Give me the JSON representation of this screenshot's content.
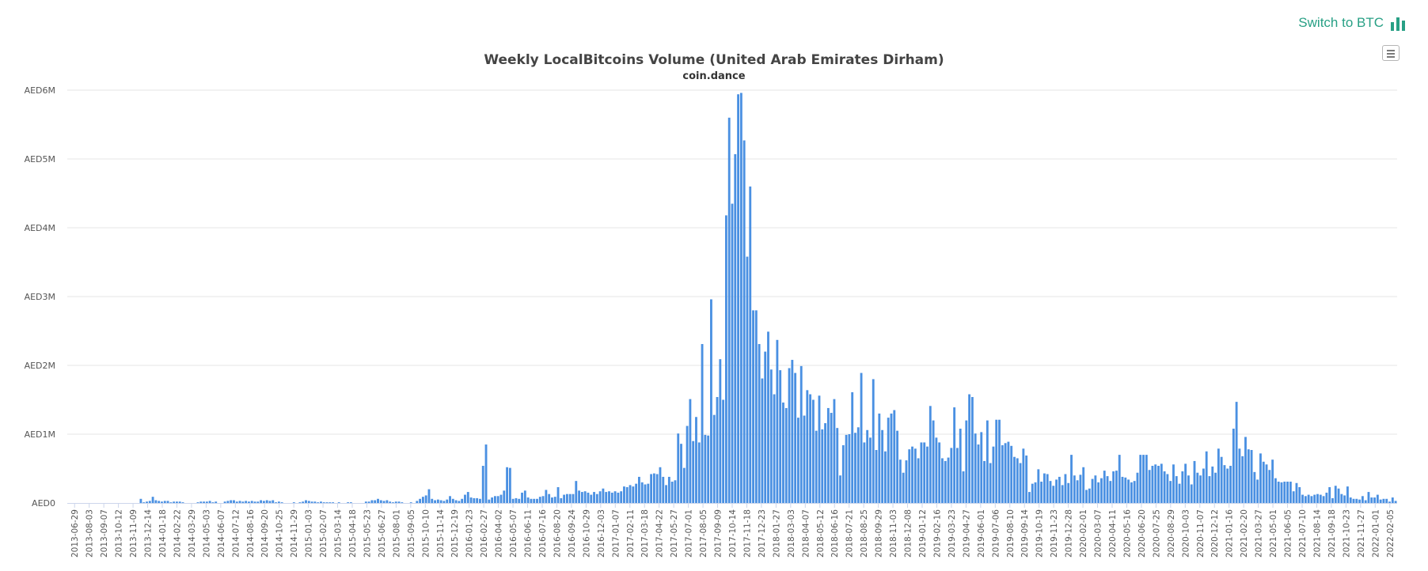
{
  "switch": {
    "label": "Switch to BTC",
    "icon": "bar-chart-icon",
    "color": "#28a085"
  },
  "menu": {
    "icon": "hamburger-menu-icon"
  },
  "chart_data": {
    "type": "bar",
    "title": "Weekly LocalBitcoins Volume (United Arab Emirates Dirham)",
    "subtitle": "coin.dance",
    "xlabel": "",
    "ylabel": "",
    "ylim": [
      0,
      6000000
    ],
    "grid": true,
    "bar_color": "#4a90e2",
    "y_tick_labels": [
      "AED0",
      "AED1M",
      "AED2M",
      "AED3M",
      "AED4M",
      "AED5M",
      "AED6M"
    ],
    "x_tick_labels": [
      "2013-06-29",
      "2013-08-03",
      "2013-09-07",
      "2013-10-12",
      "2013-11-09",
      "2013-12-14",
      "2014-01-18",
      "2014-02-22",
      "2014-03-29",
      "2014-05-03",
      "2014-06-07",
      "2014-07-12",
      "2014-08-16",
      "2014-09-20",
      "2014-10-25",
      "2014-11-29",
      "2015-01-03",
      "2015-02-07",
      "2015-03-14",
      "2015-04-18",
      "2015-05-23",
      "2015-06-27",
      "2015-08-01",
      "2015-09-05",
      "2015-10-10",
      "2015-11-14",
      "2015-12-19",
      "2016-01-23",
      "2016-02-27",
      "2016-04-02",
      "2016-05-07",
      "2016-06-11",
      "2016-07-16",
      "2016-08-20",
      "2016-09-24",
      "2016-10-29",
      "2016-12-03",
      "2017-01-07",
      "2017-02-11",
      "2017-03-18",
      "2017-04-22",
      "2017-05-27",
      "2017-07-01",
      "2017-08-05",
      "2017-09-09",
      "2017-10-14",
      "2017-11-18",
      "2017-12-23",
      "2018-01-27",
      "2018-03-03",
      "2018-04-07",
      "2018-05-12",
      "2018-06-16",
      "2018-07-21",
      "2018-08-25",
      "2018-09-29",
      "2018-11-03",
      "2018-12-08",
      "2019-01-12",
      "2019-02-16",
      "2019-03-23",
      "2019-04-27",
      "2019-06-01",
      "2019-07-06",
      "2019-08-10",
      "2019-09-14",
      "2019-10-19",
      "2019-11-23",
      "2019-12-28",
      "2020-02-01",
      "2020-03-07",
      "2020-04-11",
      "2020-05-16",
      "2020-06-20",
      "2020-07-25",
      "2020-08-29",
      "2020-10-03",
      "2020-11-07",
      "2020-12-12",
      "2021-01-16",
      "2021-02-20",
      "2021-03-27",
      "2021-05-01",
      "2021-06-05",
      "2021-07-10",
      "2021-08-14",
      "2021-09-18",
      "2021-10-23",
      "2021-11-27",
      "2022-01-01",
      "2022-02-05"
    ],
    "values": [
      0,
      0,
      0,
      0,
      0,
      0,
      0,
      0,
      0,
      0,
      0,
      0,
      0,
      0,
      0,
      0,
      0,
      0,
      0,
      0,
      0,
      0,
      0,
      0,
      60000,
      10000,
      20000,
      30000,
      90000,
      40000,
      30000,
      20000,
      30000,
      30000,
      10000,
      20000,
      20000,
      20000,
      10000,
      0,
      0,
      0,
      0,
      10000,
      20000,
      20000,
      20000,
      30000,
      10000,
      20000,
      0,
      0,
      20000,
      30000,
      40000,
      40000,
      20000,
      30000,
      20000,
      30000,
      20000,
      30000,
      20000,
      20000,
      40000,
      30000,
      40000,
      30000,
      40000,
      10000,
      20000,
      10000,
      0,
      0,
      0,
      10000,
      0,
      10000,
      20000,
      40000,
      30000,
      20000,
      20000,
      10000,
      20000,
      10000,
      10000,
      10000,
      10000,
      0,
      10000,
      0,
      0,
      10000,
      10000,
      0,
      0,
      0,
      0,
      20000,
      20000,
      40000,
      40000,
      60000,
      40000,
      30000,
      40000,
      20000,
      10000,
      20000,
      20000,
      10000,
      0,
      0,
      10000,
      0,
      30000,
      60000,
      90000,
      110000,
      200000,
      60000,
      40000,
      50000,
      40000,
      30000,
      50000,
      100000,
      60000,
      40000,
      30000,
      60000,
      120000,
      160000,
      80000,
      70000,
      70000,
      60000,
      540000,
      850000,
      50000,
      80000,
      100000,
      100000,
      120000,
      180000,
      520000,
      510000,
      60000,
      70000,
      60000,
      150000,
      180000,
      80000,
      60000,
      60000,
      60000,
      90000,
      100000,
      190000,
      130000,
      80000,
      90000,
      230000,
      70000,
      120000,
      130000,
      130000,
      130000,
      320000,
      180000,
      160000,
      170000,
      150000,
      120000,
      160000,
      130000,
      170000,
      210000,
      160000,
      170000,
      150000,
      170000,
      150000,
      170000,
      240000,
      230000,
      260000,
      240000,
      280000,
      380000,
      300000,
      270000,
      280000,
      420000,
      430000,
      420000,
      520000,
      380000,
      260000,
      380000,
      310000,
      330000,
      1010000,
      860000,
      510000,
      1120000,
      1510000,
      900000,
      1250000,
      880000,
      2310000,
      990000,
      980000,
      2960000,
      1280000,
      1540000,
      2090000,
      1500000,
      4180000,
      5600000,
      4350000,
      5070000,
      5940000,
      5960000,
      5270000,
      3580000,
      4600000,
      2800000,
      2800000,
      2310000,
      1810000,
      2200000,
      2490000,
      1940000,
      1580000,
      2370000,
      1930000,
      1460000,
      1380000,
      1960000,
      2080000,
      1890000,
      1240000,
      1990000,
      1270000,
      1640000,
      1580000,
      1500000,
      1050000,
      1560000,
      1070000,
      1160000,
      1380000,
      1310000,
      1510000,
      1090000,
      400000,
      840000,
      990000,
      1000000,
      1610000,
      1020000,
      1100000,
      1890000,
      880000,
      1060000,
      950000,
      1800000,
      770000,
      1300000,
      1060000,
      750000,
      1240000,
      1300000,
      1350000,
      1050000,
      630000,
      440000,
      620000,
      780000,
      820000,
      790000,
      650000,
      880000,
      880000,
      820000,
      1410000,
      1200000,
      950000,
      880000,
      650000,
      610000,
      660000,
      800000,
      1390000,
      800000,
      1080000,
      460000,
      1200000,
      1580000,
      1540000,
      1010000,
      850000,
      1030000,
      610000,
      1200000,
      580000,
      820000,
      1210000,
      1210000,
      840000,
      870000,
      890000,
      830000,
      670000,
      650000,
      580000,
      790000,
      690000,
      160000,
      280000,
      300000,
      490000,
      310000,
      430000,
      420000,
      320000,
      250000,
      340000,
      380000,
      260000,
      420000,
      290000,
      700000,
      400000,
      330000,
      410000,
      520000,
      190000,
      210000,
      350000,
      400000,
      300000,
      360000,
      470000,
      390000,
      320000,
      460000,
      470000,
      700000,
      380000,
      370000,
      340000,
      300000,
      320000,
      440000,
      700000,
      700000,
      700000,
      480000,
      540000,
      560000,
      540000,
      570000,
      460000,
      420000,
      320000,
      560000,
      390000,
      280000,
      460000,
      570000,
      400000,
      270000,
      610000,
      440000,
      400000,
      500000,
      750000,
      390000,
      530000,
      440000,
      790000,
      670000,
      550000,
      500000,
      540000,
      1080000,
      1470000,
      790000,
      680000,
      960000,
      780000,
      770000,
      450000,
      340000,
      720000,
      600000,
      560000,
      480000,
      630000,
      360000,
      310000,
      300000,
      310000,
      310000,
      310000,
      170000,
      290000,
      230000,
      120000,
      100000,
      120000,
      100000,
      120000,
      130000,
      120000,
      100000,
      150000,
      230000,
      70000,
      250000,
      210000,
      130000,
      110000,
      240000,
      80000,
      60000,
      60000,
      50000,
      100000,
      40000,
      160000,
      80000,
      80000,
      120000,
      50000,
      60000,
      60000,
      20000,
      80000,
      30000
    ]
  }
}
